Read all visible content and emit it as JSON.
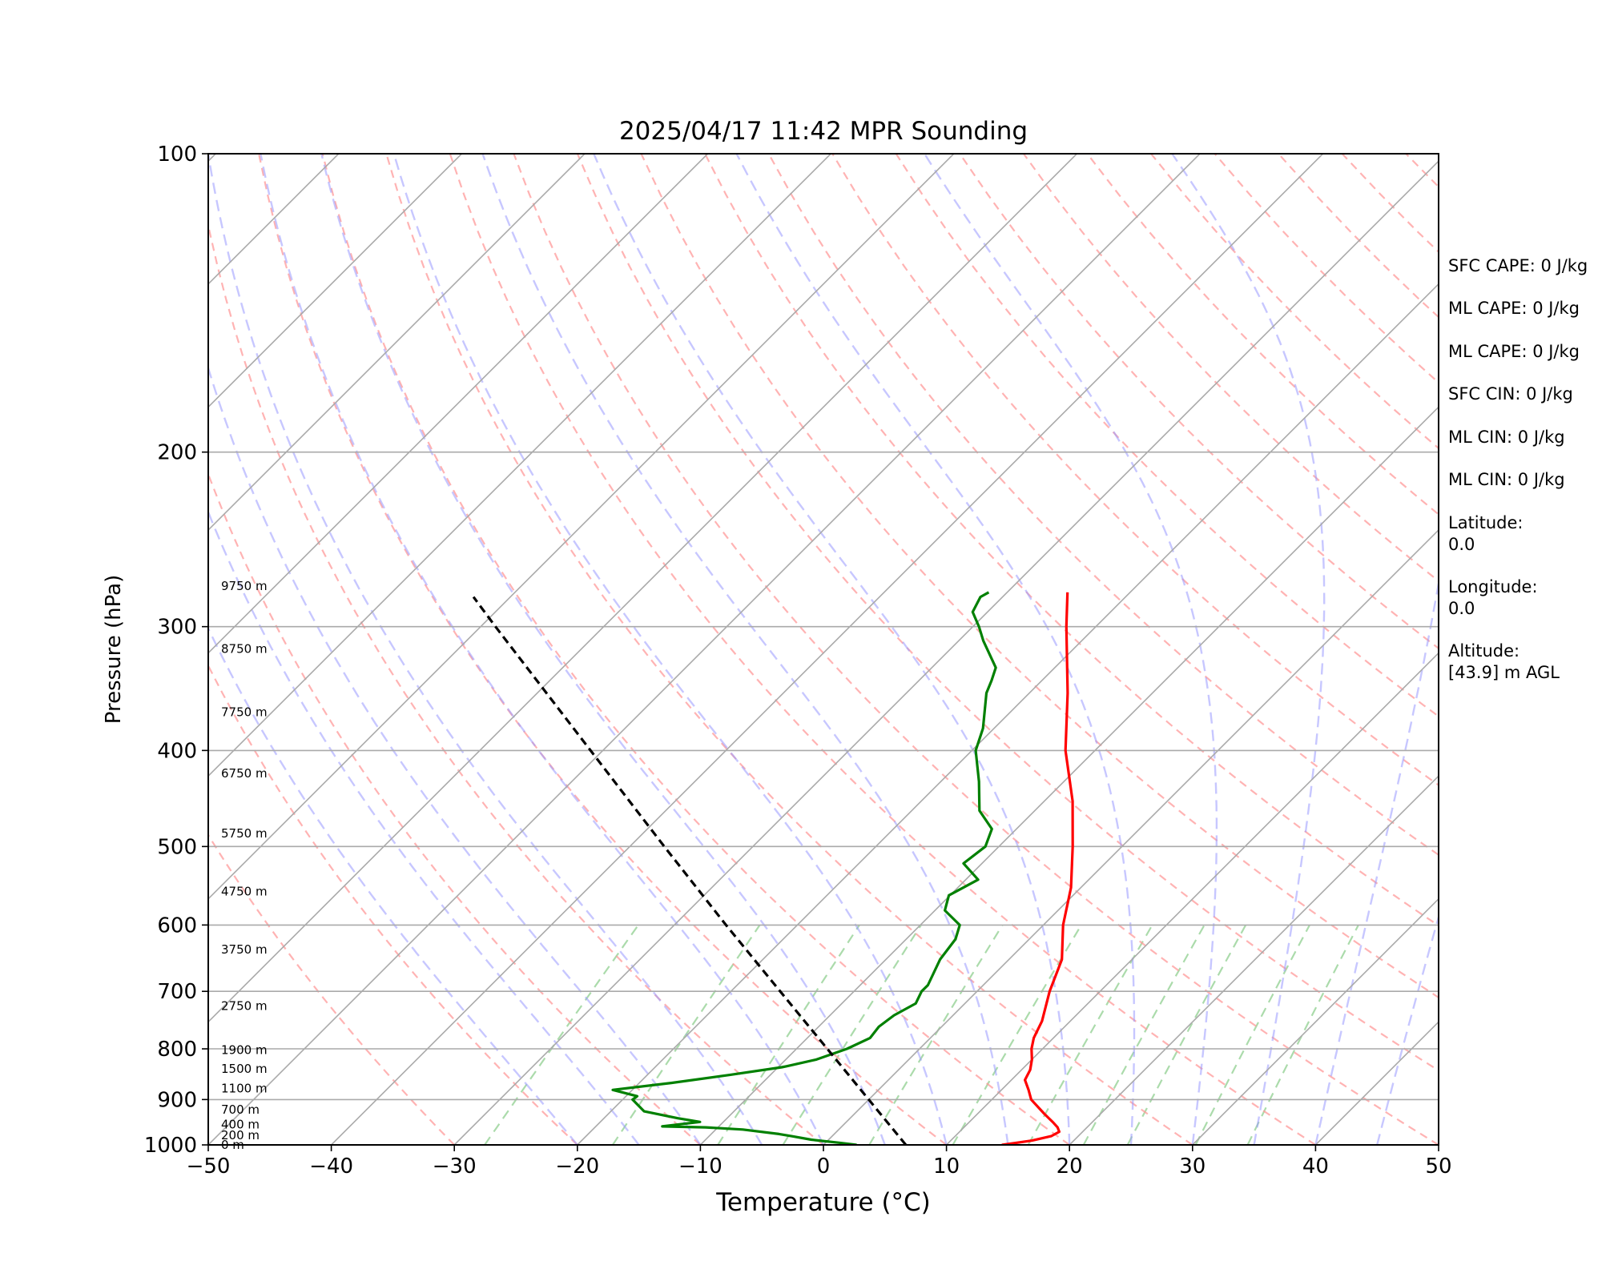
{
  "chart_data": {
    "type": "line",
    "title": "2025/04/17 11:42 MPR Sounding",
    "xlabel": "Temperature (°C)",
    "ylabel": "Pressure (hPa)",
    "xlim": [
      -50,
      50
    ],
    "ylim": [
      1000,
      100
    ],
    "y_scale": "log",
    "grid": true,
    "x_ticks": [
      "−50",
      "−40",
      "−30",
      "−20",
      "−10",
      "0",
      "10",
      "20",
      "30",
      "40",
      "50"
    ],
    "y_ticks": [
      "100",
      "200",
      "300",
      "400",
      "500",
      "600",
      "700",
      "800",
      "900",
      "1000"
    ],
    "series": [
      {
        "role": "temperature",
        "color": "#ff0000",
        "points": [
          [
            1000,
            14.5
          ],
          [
            990,
            16.6
          ],
          [
            980,
            17.8
          ],
          [
            970,
            18.1
          ],
          [
            960,
            17.6
          ],
          [
            950,
            16.9
          ],
          [
            930,
            15.4
          ],
          [
            900,
            13.2
          ],
          [
            880,
            12.2
          ],
          [
            860,
            11.1
          ],
          [
            840,
            10.7
          ],
          [
            820,
            10.0
          ],
          [
            800,
            9.1
          ],
          [
            780,
            8.4
          ],
          [
            750,
            7.7
          ],
          [
            700,
            5.9
          ],
          [
            650,
            4.3
          ],
          [
            600,
            1.6
          ],
          [
            550,
            -0.8
          ],
          [
            500,
            -4.0
          ],
          [
            450,
            -7.7
          ],
          [
            400,
            -12.4
          ],
          [
            350,
            -16.9
          ],
          [
            300,
            -22.4
          ],
          [
            277,
            -25.1
          ]
        ]
      },
      {
        "role": "dewpoint",
        "color": "#008000",
        "points": [
          [
            1000,
            2.7
          ],
          [
            995,
            1.1
          ],
          [
            988,
            -1.4
          ],
          [
            980,
            -3.3
          ],
          [
            975,
            -4.5
          ],
          [
            965,
            -7.8
          ],
          [
            960,
            -11.0
          ],
          [
            958,
            -14.6
          ],
          [
            948,
            -11.9
          ],
          [
            940,
            -14.0
          ],
          [
            925,
            -17.3
          ],
          [
            900,
            -19.2
          ],
          [
            893,
            -19.1
          ],
          [
            880,
            -21.6
          ],
          [
            866,
            -17.4
          ],
          [
            850,
            -13.3
          ],
          [
            835,
            -9.7
          ],
          [
            833,
            -9.4
          ],
          [
            820,
            -7.5
          ],
          [
            800,
            -5.9
          ],
          [
            780,
            -4.9
          ],
          [
            760,
            -5.1
          ],
          [
            740,
            -4.8
          ],
          [
            720,
            -4.0
          ],
          [
            700,
            -4.5
          ],
          [
            690,
            -4.5
          ],
          [
            650,
            -5.6
          ],
          [
            620,
            -6.0
          ],
          [
            600,
            -6.8
          ],
          [
            580,
            -9.2
          ],
          [
            560,
            -10.1
          ],
          [
            540,
            -9.0
          ],
          [
            520,
            -11.5
          ],
          [
            500,
            -11.1
          ],
          [
            480,
            -12.0
          ],
          [
            460,
            -14.5
          ],
          [
            430,
            -16.9
          ],
          [
            400,
            -19.7
          ],
          [
            380,
            -20.9
          ],
          [
            350,
            -23.5
          ],
          [
            340,
            -24.1
          ],
          [
            330,
            -24.8
          ],
          [
            310,
            -28.0
          ],
          [
            300,
            -29.5
          ],
          [
            290,
            -31.2
          ],
          [
            280,
            -31.8
          ],
          [
            277,
            -31.5
          ]
        ]
      },
      {
        "role": "parcel",
        "color": "#000000",
        "style": "dashed",
        "points": [
          [
            1000,
            6.7
          ],
          [
            900,
            -0.0
          ],
          [
            800,
            -7.5
          ],
          [
            700,
            -16.0
          ],
          [
            600,
            -25.8
          ],
          [
            500,
            -37.2
          ],
          [
            400,
            -51.0
          ],
          [
            300,
            -68.8
          ],
          [
            280,
            -73.0
          ]
        ]
      }
    ],
    "height_labels": [
      {
        "p": 1000,
        "text": "0 m"
      },
      {
        "p": 978,
        "text": "200 m"
      },
      {
        "p": 954,
        "text": "400 m"
      },
      {
        "p": 921,
        "text": "700 m"
      },
      {
        "p": 877,
        "text": "1100 m"
      },
      {
        "p": 838,
        "text": "1500 m"
      },
      {
        "p": 802,
        "text": "1900 m"
      },
      {
        "p": 724,
        "text": "2750 m"
      },
      {
        "p": 635,
        "text": "3750 m"
      },
      {
        "p": 555,
        "text": "4750 m"
      },
      {
        "p": 485,
        "text": "5750 m"
      },
      {
        "p": 422,
        "text": "6750 m"
      },
      {
        "p": 366,
        "text": "7750 m"
      },
      {
        "p": 316,
        "text": "8750 m"
      },
      {
        "p": 273,
        "text": "9750 m"
      }
    ],
    "reference_lines": {
      "isotherms_color": "#aaaaaa",
      "dry_adiabats_color": "#ff9999",
      "moist_adiabats_color": "#9999ff",
      "mixing_ratio_color": "#88cc88"
    }
  },
  "info_panel": {
    "lines": [
      "SFC CAPE: 0 J/kg",
      "ML CAPE: 0 J/kg",
      "ML CAPE: 0 J/kg",
      "SFC CIN: 0 J/kg",
      "ML CIN: 0 J/kg",
      "ML CIN: 0 J/kg",
      "Latitude:",
      "0.0",
      "Longitude:",
      "0.0",
      "Altitude:",
      "[43.9] m AGL"
    ]
  }
}
